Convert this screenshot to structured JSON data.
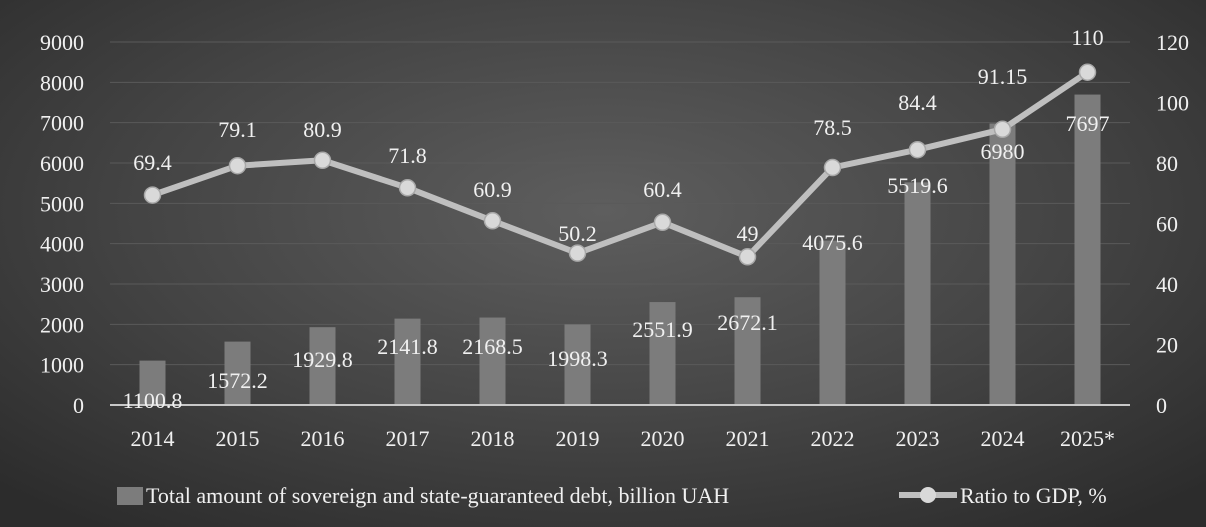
{
  "chart_data": {
    "type": "bar",
    "categories": [
      "2014",
      "2015",
      "2016",
      "2017",
      "2018",
      "2019",
      "2020",
      "2021",
      "2022",
      "2023",
      "2024",
      "2025*"
    ],
    "series": [
      {
        "name": "Total amount of sovereign and state-guaranteed debt, billion UAH",
        "type": "bar",
        "axis": "left",
        "values": [
          1100.8,
          1572.2,
          1929.8,
          2141.8,
          2168.5,
          1998.3,
          2551.9,
          2672.1,
          4075.6,
          5519.6,
          6980,
          7697
        ],
        "labels": [
          "1100.8",
          "1572.2",
          "1929.8",
          "2141.8",
          "2168.5",
          "1998.3",
          "2551.9",
          "2672.1",
          "4075.6",
          "5519.6",
          "6980",
          "7697"
        ]
      },
      {
        "name": "Ratio to GDP, %",
        "type": "line",
        "axis": "right",
        "values": [
          69.4,
          79.1,
          80.9,
          71.8,
          60.9,
          50.2,
          60.4,
          49,
          78.5,
          84.4,
          91.15,
          110
        ],
        "labels": [
          "69.4",
          "79.1",
          "80.9",
          "71.8",
          "60.9",
          "50.2",
          "60.4",
          "49",
          "78.5",
          "84.4",
          "91.15",
          "110"
        ]
      }
    ],
    "y_left": {
      "min": 0,
      "max": 9000,
      "ticks": [
        "0",
        "1000",
        "2000",
        "3000",
        "4000",
        "5000",
        "6000",
        "7000",
        "8000",
        "9000"
      ]
    },
    "y_right": {
      "min": 0,
      "max": 120,
      "ticks": [
        "0",
        "20",
        "40",
        "60",
        "80",
        "100",
        "120"
      ]
    },
    "grid": true,
    "legend_position": "bottom",
    "colors": {
      "bar": "#7c7c7c",
      "line": "#bfbfbf",
      "marker": "#d9d9d9",
      "text": "#f0f0f0",
      "grid": "#5a5a5a"
    }
  }
}
